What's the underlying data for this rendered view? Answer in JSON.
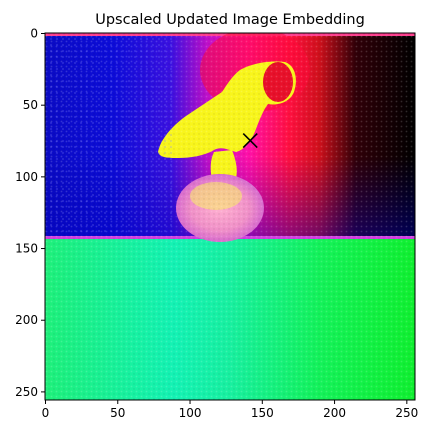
{
  "figure": {
    "title": "Upscaled Updated Image Embedding"
  },
  "chart_data": {
    "type": "heatmap",
    "title": "Upscaled Updated Image Embedding",
    "xlabel": "",
    "ylabel": "",
    "xlim": [
      0,
      256
    ],
    "ylim": [
      256,
      0
    ],
    "x_ticks": [
      0,
      50,
      100,
      150,
      200,
      250
    ],
    "y_ticks": [
      0,
      50,
      100,
      150,
      200,
      250
    ],
    "grid": false,
    "marker": {
      "symbol": "x",
      "x": 142,
      "y": 75
    },
    "regions": [
      {
        "name": "upper-left-background",
        "color": "#0a0ad6"
      },
      {
        "name": "upper-middle-background",
        "color": "#ff1aa0"
      },
      {
        "name": "upper-right-background",
        "color": "#000000"
      },
      {
        "name": "foreground-object",
        "color": "#f5f51e"
      },
      {
        "name": "lower-half-background",
        "color": "#19f27a"
      }
    ]
  }
}
